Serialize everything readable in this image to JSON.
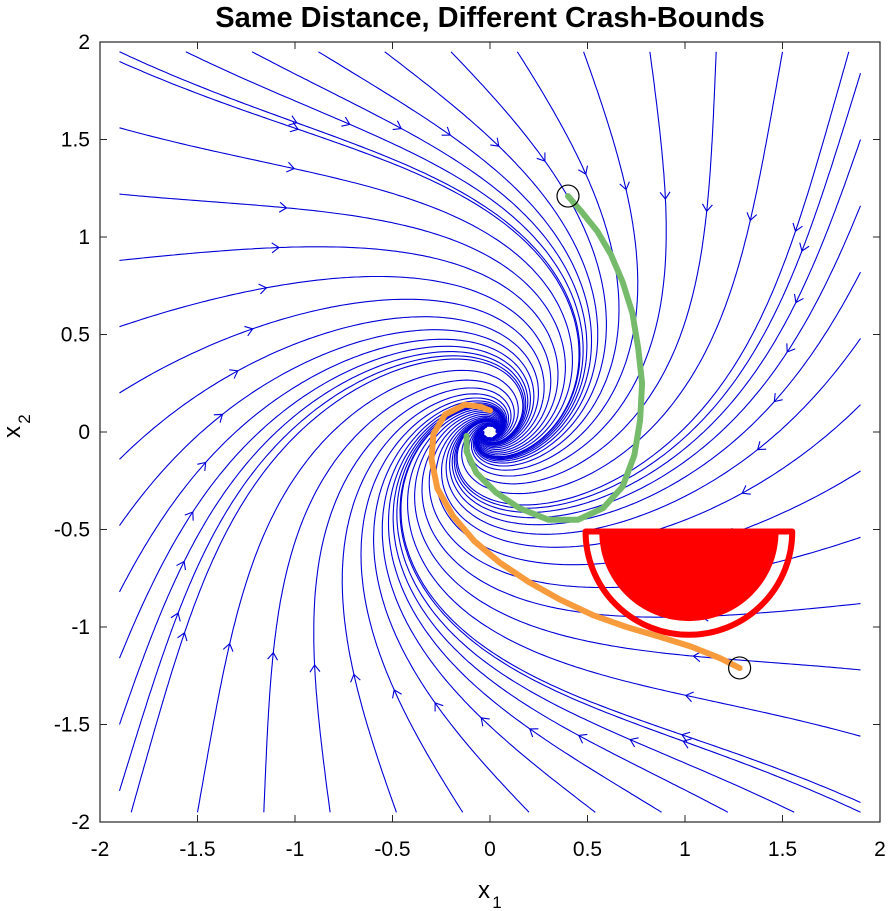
{
  "chart_data": {
    "type": "line",
    "title": "Same Distance, Different Crash-Bounds",
    "xlabel": {
      "base": "x",
      "sub": "1"
    },
    "ylabel": {
      "base": "x",
      "sub": "2"
    },
    "xlim": [
      -2,
      2
    ],
    "ylim": [
      -2,
      2
    ],
    "xticks": [
      "-2",
      "-1.5",
      "-1",
      "-0.5",
      "0",
      "0.5",
      "1",
      "1.5",
      "2"
    ],
    "yticks": [
      "-2",
      "-1.5",
      "-1",
      "-0.5",
      "0",
      "0.5",
      "1",
      "1.5",
      "2"
    ],
    "grid": false,
    "background": "streamline phase portrait",
    "colors": {
      "streamlines": "#0000d8",
      "trajectory_green": "#76bb6b",
      "trajectory_orange": "#f79b3d",
      "crash_region": "#ff0000",
      "start_marker": "#000000"
    },
    "series": [
      {
        "points": [
          [
            0.4,
            1.21
          ],
          [
            0.47,
            1.13
          ],
          [
            0.55,
            1.03
          ],
          [
            0.62,
            0.91
          ],
          [
            0.68,
            0.77
          ],
          [
            0.73,
            0.61
          ],
          [
            0.76,
            0.43
          ],
          [
            0.78,
            0.25
          ],
          [
            0.77,
            0.06
          ],
          [
            0.74,
            -0.12
          ],
          [
            0.68,
            -0.28
          ],
          [
            0.58,
            -0.39
          ],
          [
            0.45,
            -0.45
          ],
          [
            0.3,
            -0.45
          ],
          [
            0.15,
            -0.39
          ],
          [
            0.03,
            -0.31
          ],
          [
            -0.07,
            -0.21
          ],
          [
            -0.12,
            -0.1
          ],
          [
            -0.12,
            -0.02
          ]
        ],
        "start": [
          0.4,
          1.21
        ]
      },
      {
        "points": [
          [
            1.28,
            -1.21
          ],
          [
            1.18,
            -1.16
          ],
          [
            1.03,
            -1.1
          ],
          [
            0.87,
            -1.05
          ],
          [
            0.7,
            -1.0
          ],
          [
            0.53,
            -0.94
          ],
          [
            0.36,
            -0.86
          ],
          [
            0.2,
            -0.77
          ],
          [
            0.05,
            -0.67
          ],
          [
            -0.08,
            -0.56
          ],
          [
            -0.19,
            -0.43
          ],
          [
            -0.27,
            -0.29
          ],
          [
            -0.3,
            -0.14
          ],
          [
            -0.29,
            -0.01
          ],
          [
            -0.23,
            0.09
          ],
          [
            -0.13,
            0.14
          ],
          [
            -0.05,
            0.13
          ],
          [
            0.0,
            0.11
          ]
        ],
        "start": [
          1.28,
          -1.21
        ]
      }
    ],
    "crash_region": {
      "center": [
        1.02,
        -0.51
      ],
      "radius": 0.46,
      "shape": "lower half-disk"
    },
    "crash_bound": {
      "center": [
        1.02,
        -0.51
      ],
      "radius": 0.53,
      "shape": "lower half-disk outline"
    }
  }
}
